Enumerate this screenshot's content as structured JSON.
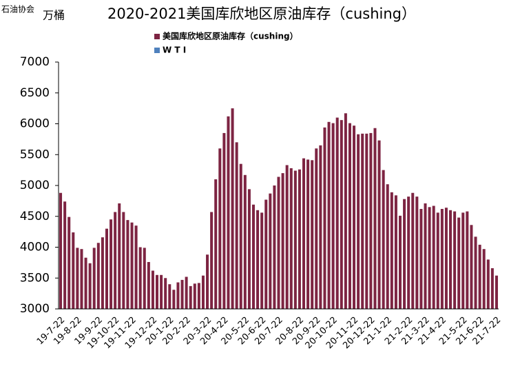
{
  "source": "石油协会",
  "chart_data": {
    "type": "bar",
    "title": "2020-2021美国库欣地区原油库存（cushing）",
    "y_label": "万桶",
    "color": "#7d2442",
    "legend": [
      {
        "name": "美国库欣地区原油库存（cushing）",
        "color": "#7d2442"
      },
      {
        "name": "W T I",
        "color": "#4f81bd"
      }
    ],
    "categories": [
      "19-7-22",
      null,
      null,
      null,
      "19-8-22",
      null,
      null,
      null,
      null,
      "19-9-22",
      null,
      null,
      null,
      "19-10-22",
      null,
      null,
      null,
      "19-11-22",
      null,
      null,
      null,
      null,
      "19-12-22",
      null,
      null,
      null,
      "20-1-22",
      null,
      null,
      null,
      "20-2-22",
      null,
      null,
      null,
      null,
      "20-3-22",
      null,
      null,
      null,
      "20-4-22",
      null,
      null,
      null,
      null,
      "20-5-22",
      null,
      null,
      null,
      "20-6-22",
      null,
      null,
      null,
      "20-7-22",
      null,
      null,
      null,
      null,
      "20-8-22",
      null,
      null,
      null,
      "20-9-22",
      null,
      null,
      null,
      "20-10-22",
      null,
      null,
      null,
      null,
      "20-11-22",
      null,
      null,
      null,
      "20-12-22",
      null,
      null,
      null,
      "21-1-22",
      null,
      null,
      null,
      null,
      "21-2-22",
      null,
      null,
      null,
      "21-3-22",
      null,
      null,
      null,
      "21-4-22",
      null,
      null,
      null,
      null,
      "21-5-22",
      null,
      null,
      null,
      "21-6-22",
      null,
      null,
      null,
      "21-7-22"
    ],
    "values": [
      4880,
      4740,
      4490,
      4240,
      3990,
      3970,
      3830,
      3740,
      3990,
      4070,
      4160,
      4300,
      4450,
      4570,
      4710,
      4570,
      4440,
      4400,
      4350,
      4000,
      3990,
      3760,
      3620,
      3550,
      3550,
      3500,
      3400,
      3310,
      3430,
      3470,
      3520,
      3370,
      3410,
      3420,
      3540,
      3880,
      4570,
      5100,
      5600,
      5850,
      6120,
      6250,
      5700,
      5350,
      5170,
      4940,
      4690,
      4600,
      4560,
      4770,
      4870,
      5000,
      5140,
      5200,
      5330,
      5280,
      5240,
      5260,
      5440,
      5420,
      5410,
      5600,
      5650,
      5940,
      6030,
      6010,
      6100,
      6060,
      6170,
      6010,
      5970,
      5830,
      5840,
      5840,
      5850,
      5930,
      5730,
      5250,
      5020,
      4890,
      4840,
      4510,
      4780,
      4820,
      4880,
      4820,
      4620,
      4710,
      4650,
      4670,
      4560,
      4620,
      4640,
      4600,
      4580,
      4480,
      4560,
      4580,
      4360,
      4170,
      4040,
      3970,
      3800,
      3660,
      3540
    ],
    "ylim": [
      3000,
      7000
    ],
    "yticks": [
      3000,
      3500,
      4000,
      4500,
      5000,
      5500,
      6000,
      6500,
      7000
    ],
    "grid": false
  }
}
